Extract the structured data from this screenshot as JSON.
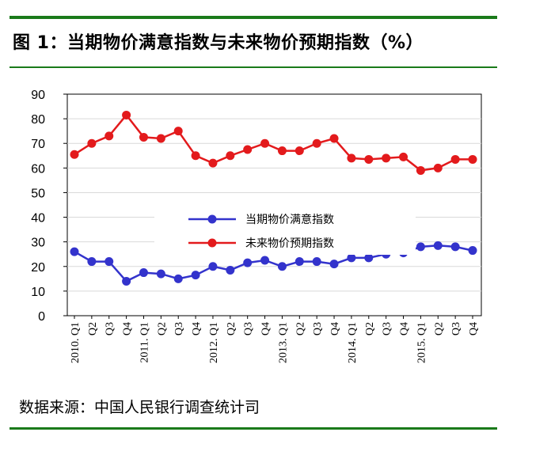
{
  "title": "图 1：当期物价满意指数与未来物价预期指数（%）",
  "source": "数据来源：中国人民银行调查统计司",
  "colors": {
    "rule": "#1a7a1a",
    "series1": "#3333cc",
    "series2": "#e31a1c",
    "grid": "#d9d9d9"
  },
  "chart_data": {
    "type": "line",
    "categories": [
      "2010. Q1",
      "Q2",
      "Q3",
      "Q4",
      "2011. Q1",
      "Q2",
      "Q3",
      "Q4",
      "2012. Q1",
      "Q2",
      "Q3",
      "Q4",
      "2013. Q1",
      "Q2",
      "Q3",
      "Q4",
      "2014. Q1",
      "Q2",
      "Q3",
      "Q4",
      "2015. Q1",
      "Q2",
      "Q3",
      "Q4"
    ],
    "ylim": [
      0,
      90
    ],
    "yticks": [
      "0",
      "10",
      "20",
      "30",
      "40",
      "50",
      "60",
      "70",
      "80",
      "90"
    ],
    "ytick_values": [
      0,
      10,
      20,
      30,
      40,
      50,
      60,
      70,
      80,
      90
    ],
    "grid": true,
    "legend": "center",
    "series": [
      {
        "name": "当期物价满意指数",
        "color": "#3333cc",
        "values": [
          26,
          22,
          22,
          14,
          17.5,
          17,
          15,
          16.5,
          20,
          18.5,
          21.5,
          22.5,
          20,
          22,
          22,
          21,
          23.5,
          23.5,
          25,
          25.5,
          28,
          28.5,
          28,
          26.5
        ]
      },
      {
        "name": "未来物价预期指数",
        "color": "#e31a1c",
        "values": [
          65.5,
          70,
          73,
          81.5,
          72.5,
          72,
          75,
          65,
          62,
          65,
          67.5,
          70,
          67,
          67,
          70,
          72,
          64,
          63.5,
          64,
          64.5,
          59,
          60,
          63.5,
          63.5
        ]
      }
    ]
  }
}
